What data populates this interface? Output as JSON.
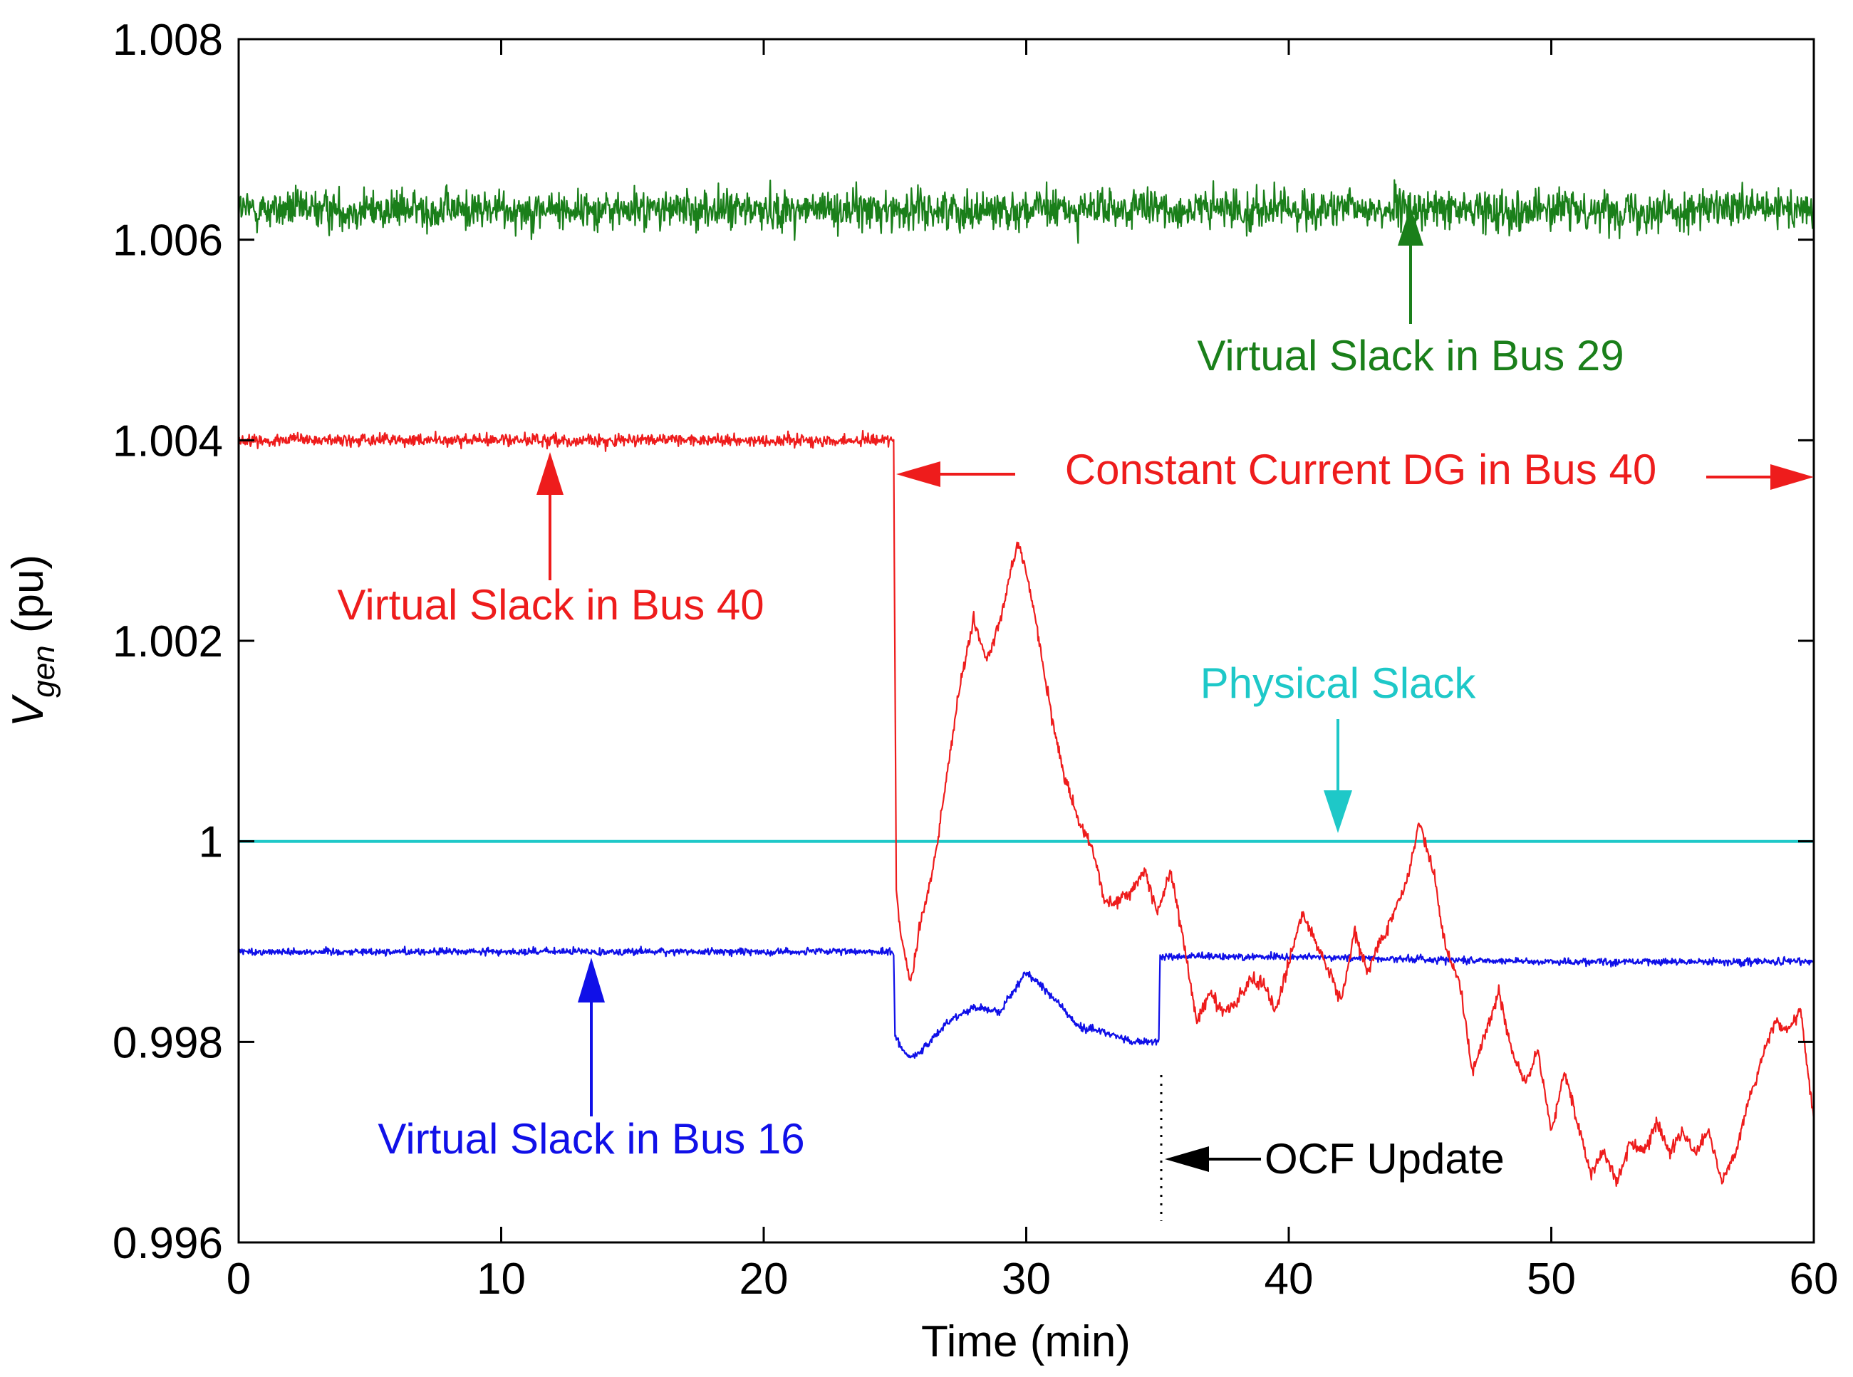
{
  "chart_data": {
    "type": "line",
    "title": "",
    "xlabel": "Time (min)",
    "ylabel": {
      "main": "V",
      "sub": "gen",
      "unit": " (pu)"
    },
    "xlim": [
      0,
      60
    ],
    "ylim": [
      0.996,
      1.008
    ],
    "grid": false,
    "x_ticks": [
      0,
      10,
      20,
      30,
      40,
      50,
      60
    ],
    "x_tick_labels": [
      "0",
      "10",
      "20",
      "30",
      "40",
      "50",
      "60"
    ],
    "y_ticks": [
      0.996,
      0.998,
      1.0,
      1.002,
      1.004,
      1.006,
      1.008
    ],
    "y_tick_labels": [
      "0.996",
      "0.998",
      "1",
      "1.002",
      "1.004",
      "1.006",
      "1.008"
    ],
    "series": [
      {
        "name": "Virtual Slack in Bus 29",
        "color": "#1a7f1a",
        "noise": 0.00022,
        "x": [
          0,
          60
        ],
        "y": [
          1.0063,
          1.0063
        ]
      },
      {
        "name": "Physical Slack",
        "color": "#1ec8c8",
        "noise": 0,
        "x": [
          0,
          60
        ],
        "y": [
          1.0,
          1.0
        ]
      },
      {
        "name": "Virtual Slack in Bus 16",
        "color": "#1010e8",
        "noise": 4e-05,
        "x": [
          0,
          24.95,
          25.0,
          25.5,
          26.0,
          27.0,
          28.0,
          29.0,
          30.0,
          31.0,
          32.0,
          33.0,
          34.0,
          35.05,
          35.1,
          40,
          50,
          60
        ],
        "y": [
          0.9989,
          0.9989,
          0.99805,
          0.99785,
          0.9979,
          0.9982,
          0.99835,
          0.9983,
          0.9987,
          0.99845,
          0.99815,
          0.9981,
          0.998,
          0.998,
          0.99885,
          0.99885,
          0.9988,
          0.9988
        ]
      },
      {
        "name": "Constant Current DG in Bus 40",
        "color": "#ee1c1c",
        "noise": 7e-05,
        "x": [
          0,
          24.95,
          25.05,
          25.2,
          25.6,
          26.0,
          26.5,
          27.0,
          27.5,
          28.0,
          28.5,
          29.0,
          29.7,
          30.3,
          31.0,
          31.5,
          32.0,
          32.5,
          33.0,
          33.5,
          34.0,
          34.5,
          35.0,
          35.5,
          36.0,
          36.5,
          37.0,
          37.5,
          38.0,
          38.5,
          39.0,
          39.5,
          40.0,
          40.5,
          41.0,
          42.0,
          42.5,
          43.0,
          43.5,
          44.0,
          44.5,
          45.0,
          45.5,
          46.0,
          46.5,
          47.0,
          47.5,
          48.0,
          48.5,
          49.0,
          49.5,
          50.0,
          50.5,
          51.0,
          51.5,
          52.0,
          52.5,
          53.0,
          53.5,
          54.0,
          54.5,
          55.0,
          55.5,
          56.0,
          56.5,
          57.0,
          57.5,
          58.0,
          58.5,
          59.0,
          59.5,
          60.0
        ],
        "y": [
          1.004,
          1.004,
          0.9995,
          0.9991,
          0.9986,
          0.9992,
          0.9998,
          1.0007,
          1.0016,
          1.0022,
          1.0018,
          1.0022,
          1.003,
          1.0023,
          1.0012,
          1.0006,
          1.0002,
          0.99995,
          0.9994,
          0.9994,
          0.9995,
          0.9997,
          0.9993,
          0.9997,
          0.999,
          0.9982,
          0.9985,
          0.9983,
          0.9984,
          0.9986,
          0.9986,
          0.9983,
          0.9988,
          0.9993,
          0.999,
          0.9984,
          0.9991,
          0.9987,
          0.999,
          0.9993,
          0.9996,
          1.0002,
          0.9997,
          0.9989,
          0.9986,
          0.9977,
          0.9981,
          0.9985,
          0.9979,
          0.9976,
          0.9979,
          0.9971,
          0.9977,
          0.9972,
          0.9967,
          0.9969,
          0.9966,
          0.997,
          0.9969,
          0.9972,
          0.9969,
          0.9971,
          0.9969,
          0.9971,
          0.9966,
          0.9969,
          0.9974,
          0.9978,
          0.9982,
          0.9981,
          0.9983,
          0.9972
        ]
      }
    ],
    "annotations": [
      {
        "text": "Virtual Slack in Bus 29",
        "color": "#1a7f1a"
      },
      {
        "text": "Constant Current DG in Bus 40",
        "color": "#ee1c1c"
      },
      {
        "text": "Virtual Slack in Bus 40",
        "color": "#ee1c1c"
      },
      {
        "text": "Physical Slack",
        "color": "#1ec8c8"
      },
      {
        "text": "Virtual Slack in Bus 16",
        "color": "#1010e8"
      },
      {
        "text": "OCF Update",
        "color": "#000000"
      }
    ]
  }
}
